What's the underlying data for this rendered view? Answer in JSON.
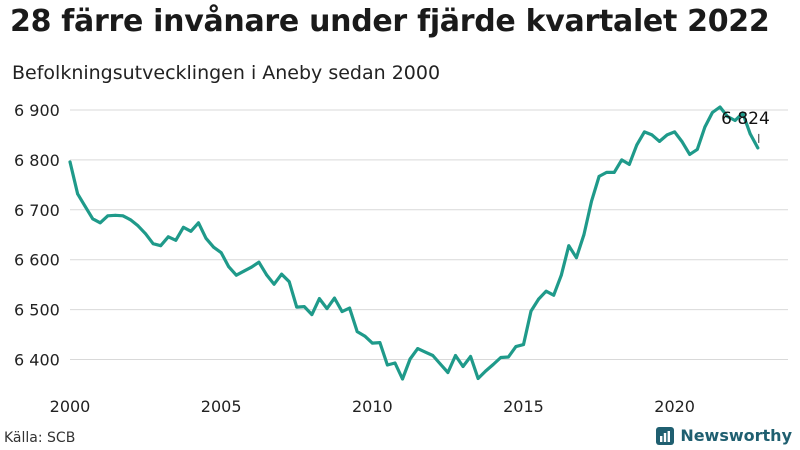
{
  "title": "28 färre invånare under fjärde kvartalet 2022",
  "subtitle": "Befolkningsutvecklingen i Aneby sedan 2000",
  "source": "Källa: SCB",
  "brand": "Newsworthy",
  "colors": {
    "line": "#1f9a8a",
    "grid": "#d9d9d9",
    "brand": "#1f5f70"
  },
  "chart_data": {
    "type": "line",
    "title": "28 färre invånare under fjärde kvartalet 2022",
    "subtitle": "Befolkningsutvecklingen i Aneby sedan 2000",
    "xlabel": "",
    "ylabel": "",
    "xlim": [
      2000,
      2023.75
    ],
    "ylim": [
      6355,
      6920
    ],
    "x_ticks": [
      2000,
      2005,
      2010,
      2015,
      2020
    ],
    "x_tick_labels": [
      "2000",
      "2005",
      "2010",
      "2015",
      "2020"
    ],
    "y_ticks": [
      6400,
      6500,
      6600,
      6700,
      6800,
      6900
    ],
    "y_tick_labels": [
      "6 400",
      "6 500",
      "6 600",
      "6 700",
      "6 800",
      "6 900"
    ],
    "grid": "horizontal",
    "annotation": {
      "x": 2022.75,
      "y": 6824,
      "label": "6 824"
    },
    "x_start_year": 2000,
    "x_step": 0.25,
    "values": [
      6796,
      6732,
      6707,
      6682,
      6674,
      6688,
      6689,
      6688,
      6680,
      6668,
      6652,
      6632,
      6628,
      6646,
      6639,
      6665,
      6657,
      6674,
      6643,
      6625,
      6614,
      6586,
      6569,
      6577,
      6585,
      6595,
      6570,
      6551,
      6571,
      6556,
      6505,
      6506,
      6490,
      6522,
      6502,
      6523,
      6496,
      6503,
      6456,
      6447,
      6433,
      6434,
      6389,
      6393,
      6361,
      6401,
      6422,
      6415,
      6408,
      6391,
      6374,
      6408,
      6386,
      6406,
      6362,
      6377,
      6390,
      6404,
      6405,
      6426,
      6430,
      6497,
      6521,
      6537,
      6529,
      6569,
      6628,
      6604,
      6650,
      6717,
      6767,
      6775,
      6775,
      6800,
      6791,
      6830,
      6856,
      6850,
      6837,
      6850,
      6856,
      6836,
      6811,
      6821,
      6866,
      6895,
      6906,
      6887,
      6879,
      6894,
      6852,
      6824
    ]
  }
}
